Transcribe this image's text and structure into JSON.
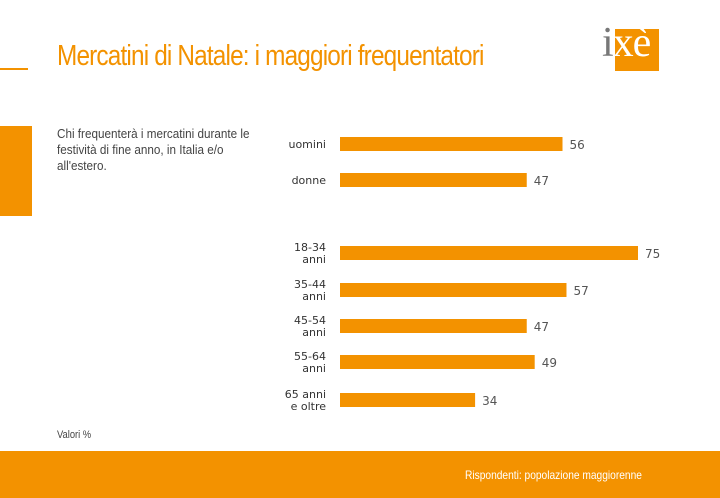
{
  "title": "Mercatini di Natale: i maggiori frequentatori",
  "logo": {
    "letter_i": "i",
    "letters_xe": "xè"
  },
  "description": "Chi frequenterà i mercatini durante le festività di fine anno, in Italia e/o all'estero.",
  "note": "Valori %",
  "footer": "Rispondenti: popolazione maggiorenne",
  "colors": {
    "accent": "#f39200",
    "logo_grey": "#777777"
  },
  "chart_data": {
    "type": "bar",
    "orientation": "horizontal",
    "categories": [
      [
        "uomini"
      ],
      [
        "donne"
      ],
      [
        "18-34",
        "anni"
      ],
      [
        "35-44",
        "anni"
      ],
      [
        "45-54",
        "anni"
      ],
      [
        "55-64",
        "anni"
      ],
      [
        "65 anni",
        "e oltre"
      ]
    ],
    "values": [
      56,
      47,
      75,
      57,
      47,
      49,
      34
    ],
    "groups": [
      [
        0,
        1
      ],
      [
        2,
        3,
        4,
        5,
        6
      ]
    ],
    "xlim": [
      0,
      80
    ],
    "grid": false,
    "legend": false
  }
}
